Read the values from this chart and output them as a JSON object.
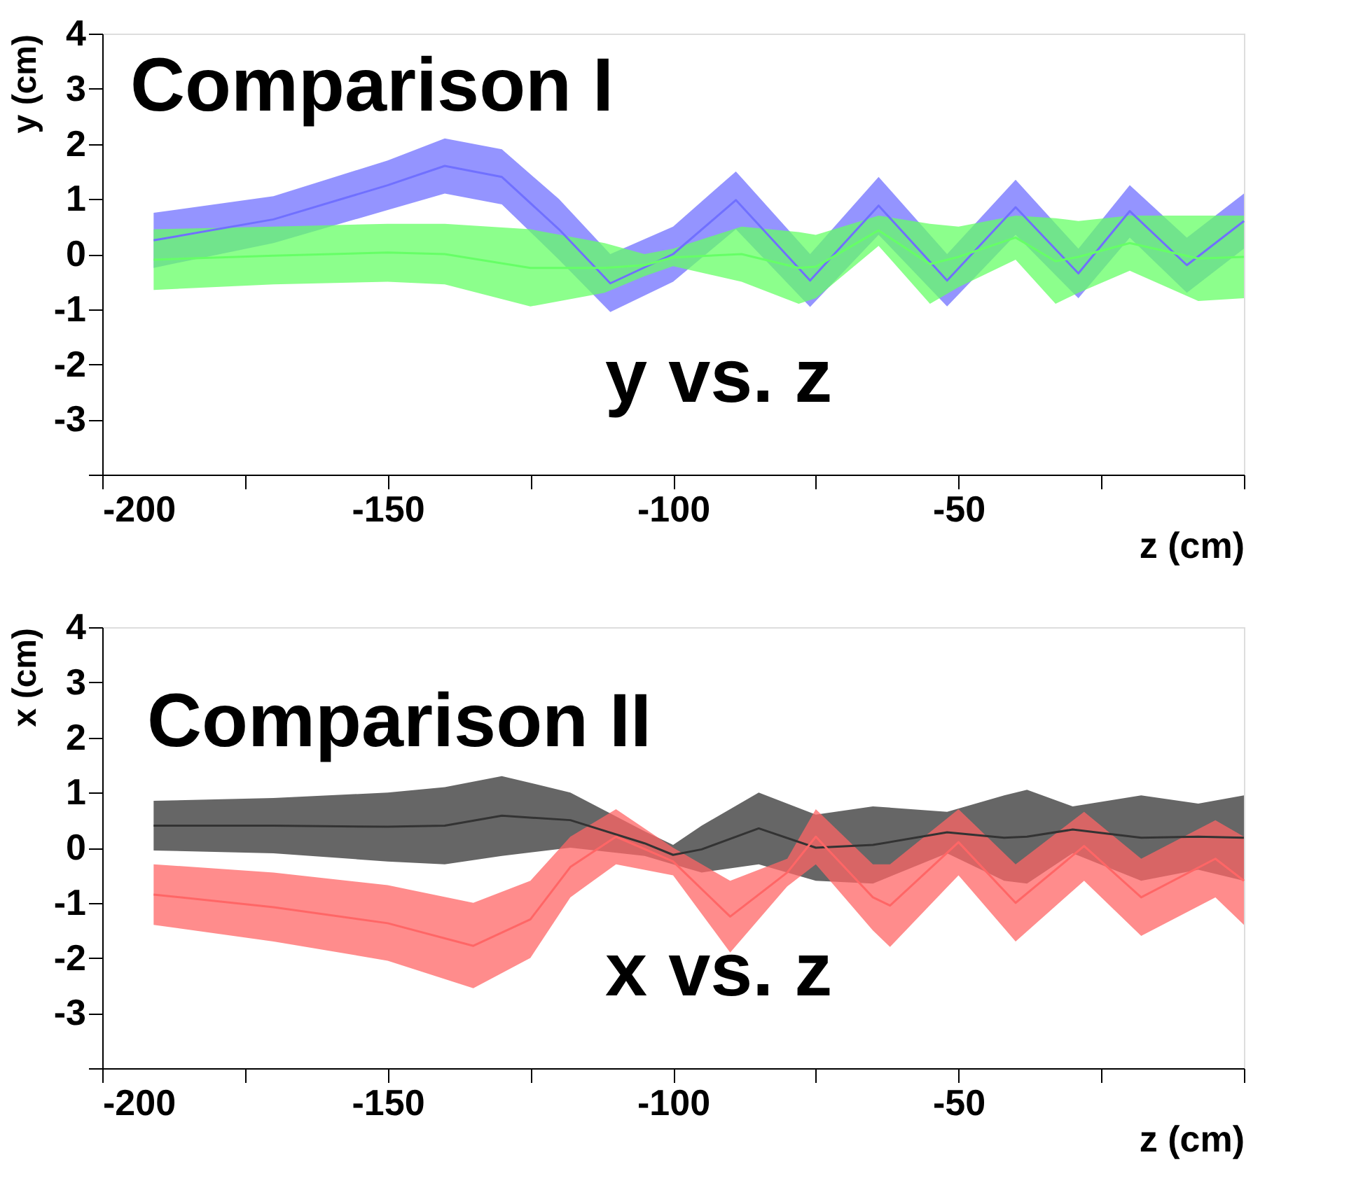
{
  "chart_data": [
    {
      "type": "line",
      "title": "Comparison I",
      "xlabel": "z (cm)",
      "ylabel": "y (cm)",
      "annotations": [
        "y vs. z"
      ],
      "xlim": [
        -200,
        0
      ],
      "ylim": [
        -4,
        4
      ],
      "xticks": [
        -200,
        {
          "value": -175,
          "label": null
        },
        -150,
        {
          "value": -125,
          "label": null
        },
        -100,
        {
          "value": -75,
          "label": null
        },
        -50,
        {
          "value": -25,
          "label": null
        },
        {
          "value": 0,
          "label": null
        }
      ],
      "yticks": [
        {
          "value": -4,
          "label": null
        },
        -3,
        -2,
        -1,
        0,
        1,
        2,
        3,
        4
      ],
      "grid": false,
      "series": [
        {
          "color": "#7070ff",
          "x": [
            -191,
            -170,
            -150,
            -140,
            -130,
            -120,
            -111,
            -100,
            -89,
            -76,
            -64,
            -52,
            -40,
            -29,
            -20,
            -10,
            0
          ],
          "values": [
            0.25,
            0.63,
            1.25,
            1.6,
            1.4,
            0.45,
            -0.53,
            0.0,
            0.98,
            -0.48,
            0.88,
            -0.48,
            0.85,
            -0.35,
            0.78,
            -0.2,
            0.6
          ],
          "upper": [
            0.75,
            1.05,
            1.7,
            2.1,
            1.9,
            1.0,
            0.0,
            0.5,
            1.5,
            0.0,
            1.4,
            0.0,
            1.35,
            0.1,
            1.25,
            0.3,
            1.1
          ],
          "lower": [
            -0.25,
            0.2,
            0.8,
            1.1,
            0.9,
            -0.1,
            -1.05,
            -0.5,
            0.45,
            -0.96,
            0.35,
            -0.95,
            0.35,
            -0.8,
            0.3,
            -0.7,
            0.1
          ]
        },
        {
          "color": "#66ff66",
          "x": [
            -191,
            -170,
            -150,
            -140,
            -125,
            -112,
            -105,
            -100,
            -88,
            -78,
            -75,
            -64,
            -55,
            -50,
            -40,
            -33,
            -29,
            -20,
            -8,
            0
          ],
          "values": [
            -0.1,
            -0.03,
            0.03,
            0.0,
            -0.25,
            -0.25,
            -0.2,
            -0.06,
            0.0,
            -0.25,
            -0.23,
            0.43,
            -0.18,
            -0.05,
            0.3,
            -0.13,
            -0.05,
            0.2,
            -0.08,
            -0.05
          ],
          "upper": [
            0.45,
            0.5,
            0.55,
            0.55,
            0.45,
            0.2,
            0.0,
            0.1,
            0.5,
            0.4,
            0.35,
            0.7,
            0.55,
            0.5,
            0.7,
            0.65,
            0.6,
            0.7,
            0.7,
            0.7
          ],
          "lower": [
            -0.65,
            -0.55,
            -0.5,
            -0.55,
            -0.95,
            -0.7,
            -0.4,
            -0.22,
            -0.5,
            -0.9,
            -0.8,
            0.15,
            -0.9,
            -0.6,
            -0.1,
            -0.9,
            -0.7,
            -0.3,
            -0.85,
            -0.8
          ]
        }
      ]
    },
    {
      "type": "line",
      "title": "Comparison II",
      "xlabel": "z (cm)",
      "ylabel": "x (cm)",
      "annotations": [
        "x vs. z"
      ],
      "xlim": [
        -200,
        0
      ],
      "ylim": [
        -4,
        4
      ],
      "xticks": [
        -200,
        {
          "value": -175,
          "label": null
        },
        -150,
        {
          "value": -125,
          "label": null
        },
        -100,
        {
          "value": -75,
          "label": null
        },
        -50,
        {
          "value": -25,
          "label": null
        },
        {
          "value": 0,
          "label": null
        }
      ],
      "yticks": [
        {
          "value": -4,
          "label": null
        },
        -3,
        -2,
        -1,
        0,
        1,
        2,
        3,
        4
      ],
      "grid": false,
      "series": [
        {
          "color": "#333333",
          "x": [
            -191,
            -170,
            -150,
            -140,
            -130,
            -118,
            -105,
            -100,
            -95,
            -85,
            -75,
            -65,
            -52,
            -42,
            -38,
            -30,
            -18,
            -8,
            0
          ],
          "values": [
            0.4,
            0.4,
            0.38,
            0.4,
            0.58,
            0.5,
            0.08,
            -0.13,
            -0.03,
            0.35,
            0.0,
            0.05,
            0.28,
            0.18,
            0.2,
            0.33,
            0.18,
            0.2,
            0.18
          ],
          "upper": [
            0.85,
            0.9,
            1.0,
            1.1,
            1.3,
            1.0,
            0.3,
            0.05,
            0.4,
            1.0,
            0.6,
            0.75,
            0.65,
            0.95,
            1.05,
            0.75,
            0.95,
            0.8,
            0.95
          ],
          "lower": [
            -0.05,
            -0.1,
            -0.25,
            -0.3,
            -0.15,
            0.0,
            -0.15,
            -0.3,
            -0.45,
            -0.3,
            -0.6,
            -0.65,
            -0.1,
            -0.6,
            -0.65,
            -0.1,
            -0.6,
            -0.4,
            -0.6
          ]
        },
        {
          "color": "#ff6666",
          "x": [
            -191,
            -170,
            -150,
            -135,
            -125,
            -118,
            -110,
            -100,
            -90,
            -80,
            -75,
            -65,
            -62,
            -50,
            -40,
            -28,
            -18,
            -5,
            0
          ],
          "values": [
            -0.85,
            -1.08,
            -1.37,
            -1.78,
            -1.3,
            -0.35,
            0.2,
            -0.25,
            -1.25,
            -0.45,
            0.2,
            -0.9,
            -1.05,
            0.1,
            -1.0,
            0.03,
            -0.9,
            -0.2,
            -0.6
          ],
          "upper": [
            -0.3,
            -0.45,
            -0.68,
            -1.0,
            -0.6,
            0.2,
            0.7,
            0.0,
            -0.6,
            -0.2,
            0.7,
            -0.3,
            -0.3,
            0.7,
            -0.3,
            0.65,
            -0.2,
            0.5,
            0.2
          ],
          "lower": [
            -1.4,
            -1.7,
            -2.05,
            -2.55,
            -2.0,
            -0.9,
            -0.3,
            -0.5,
            -1.9,
            -0.7,
            -0.3,
            -1.5,
            -1.8,
            -0.5,
            -1.7,
            -0.6,
            -1.6,
            -0.9,
            -1.4
          ]
        }
      ]
    }
  ]
}
